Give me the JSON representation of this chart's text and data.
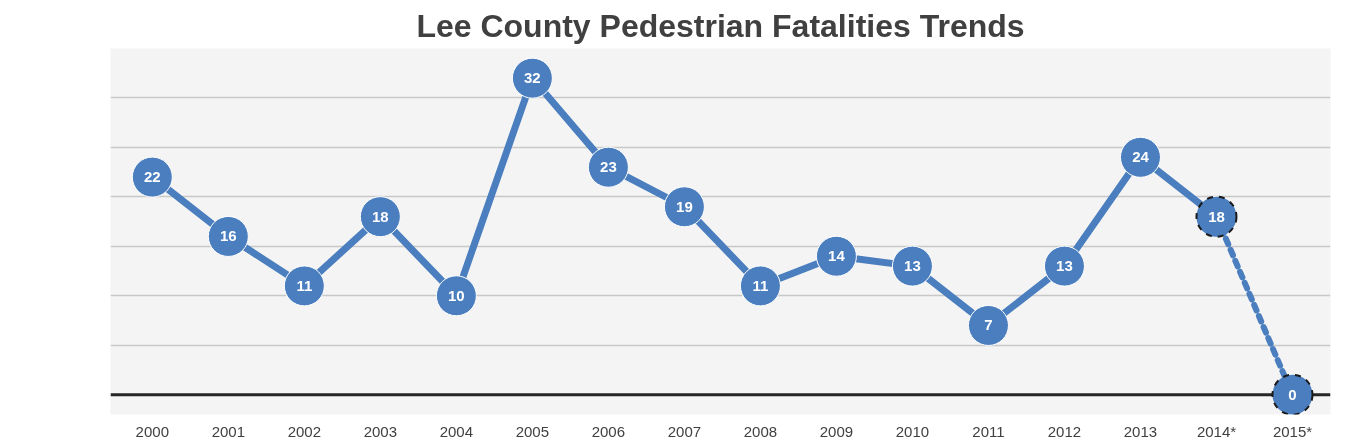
{
  "chart_data": {
    "type": "line",
    "title": "Lee County Pedestrian Fatalities Trends",
    "categories": [
      "2000",
      "2001",
      "2002",
      "2003",
      "2004",
      "2005",
      "2006",
      "2007",
      "2008",
      "2009",
      "2010",
      "2011",
      "2012",
      "2013",
      "2014*",
      "2015*"
    ],
    "series": [
      {
        "color": "#4a7ebf",
        "line_style": "solid",
        "values": [
          22,
          16,
          11,
          18,
          10,
          32,
          23,
          19,
          11,
          14,
          13,
          7,
          13,
          24,
          18,
          null
        ]
      },
      {
        "color": "#4a7ebf",
        "line_style": "dashed",
        "values": [
          null,
          null,
          null,
          null,
          null,
          null,
          null,
          null,
          null,
          null,
          null,
          null,
          null,
          null,
          18,
          0
        ],
        "value_labels": [
          null,
          null,
          null,
          null,
          null,
          null,
          null,
          null,
          null,
          null,
          null,
          null,
          null,
          null,
          null,
          "0"
        ]
      }
    ],
    "ylim": [
      -2,
      35
    ],
    "yticks": [
      {
        "value": 5,
        "label": null
      },
      {
        "value": 10,
        "label": null
      },
      {
        "value": 15,
        "label": null
      },
      {
        "value": 20,
        "label": null
      },
      {
        "value": 25,
        "label": null
      },
      {
        "value": 30,
        "label": null
      }
    ],
    "ref_lines": [
      {
        "axis": "y",
        "value": 0,
        "label": null,
        "color": "#262626"
      }
    ],
    "grid": "y",
    "tick_labels": "x",
    "marker": "circle",
    "data_labels": true
  }
}
